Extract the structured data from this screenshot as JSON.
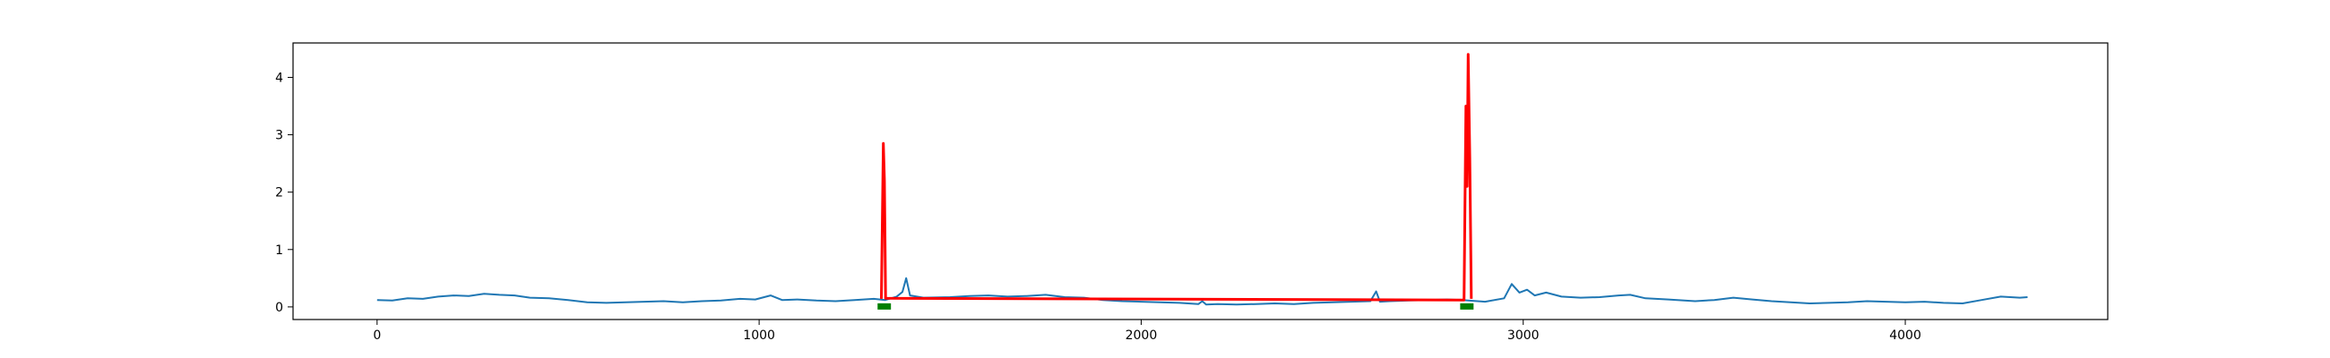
{
  "chart_data": {
    "type": "line",
    "title": "",
    "xlabel": "",
    "ylabel": "",
    "xlim": [
      -220,
      4530
    ],
    "ylim": [
      -0.22,
      4.6
    ],
    "x_ticks": [
      0,
      1000,
      2000,
      3000,
      4000
    ],
    "x_tick_labels": [
      "0",
      "1000",
      "2000",
      "3000",
      "4000"
    ],
    "y_ticks": [
      0,
      1,
      2,
      3,
      4
    ],
    "y_tick_labels": [
      "0",
      "1",
      "2",
      "3",
      "4"
    ],
    "grid": false,
    "legend": "none",
    "series": [
      {
        "color": "#1f77b4",
        "style": "line",
        "points": [
          [
            0,
            0.12
          ],
          [
            40,
            0.11
          ],
          [
            80,
            0.15
          ],
          [
            120,
            0.14
          ],
          [
            160,
            0.18
          ],
          [
            200,
            0.2
          ],
          [
            240,
            0.19
          ],
          [
            280,
            0.23
          ],
          [
            320,
            0.21
          ],
          [
            360,
            0.2
          ],
          [
            400,
            0.16
          ],
          [
            450,
            0.15
          ],
          [
            500,
            0.12
          ],
          [
            550,
            0.08
          ],
          [
            600,
            0.07
          ],
          [
            650,
            0.08
          ],
          [
            700,
            0.09
          ],
          [
            750,
            0.1
          ],
          [
            800,
            0.08
          ],
          [
            850,
            0.1
          ],
          [
            900,
            0.11
          ],
          [
            950,
            0.14
          ],
          [
            990,
            0.13
          ],
          [
            1030,
            0.2
          ],
          [
            1060,
            0.12
          ],
          [
            1100,
            0.13
          ],
          [
            1150,
            0.11
          ],
          [
            1200,
            0.1
          ],
          [
            1250,
            0.12
          ],
          [
            1300,
            0.14
          ],
          [
            1330,
            0.12
          ],
          [
            1360,
            0.18
          ],
          [
            1375,
            0.26
          ],
          [
            1385,
            0.5
          ],
          [
            1395,
            0.2
          ],
          [
            1430,
            0.16
          ],
          [
            1500,
            0.17
          ],
          [
            1550,
            0.19
          ],
          [
            1600,
            0.2
          ],
          [
            1650,
            0.18
          ],
          [
            1700,
            0.19
          ],
          [
            1750,
            0.21
          ],
          [
            1800,
            0.17
          ],
          [
            1850,
            0.16
          ],
          [
            1900,
            0.12
          ],
          [
            1950,
            0.1
          ],
          [
            2000,
            0.09
          ],
          [
            2050,
            0.08
          ],
          [
            2100,
            0.07
          ],
          [
            2150,
            0.05
          ],
          [
            2160,
            0.1
          ],
          [
            2170,
            0.04
          ],
          [
            2200,
            0.05
          ],
          [
            2250,
            0.04
          ],
          [
            2300,
            0.05
          ],
          [
            2350,
            0.06
          ],
          [
            2400,
            0.05
          ],
          [
            2450,
            0.07
          ],
          [
            2500,
            0.08
          ],
          [
            2550,
            0.09
          ],
          [
            2600,
            0.1
          ],
          [
            2615,
            0.27
          ],
          [
            2625,
            0.09
          ],
          [
            2650,
            0.1
          ],
          [
            2700,
            0.11
          ],
          [
            2750,
            0.12
          ],
          [
            2800,
            0.13
          ],
          [
            2840,
            0.12
          ],
          [
            2880,
            0.1
          ],
          [
            2900,
            0.09
          ],
          [
            2950,
            0.15
          ],
          [
            2970,
            0.4
          ],
          [
            2990,
            0.25
          ],
          [
            3010,
            0.3
          ],
          [
            3030,
            0.2
          ],
          [
            3060,
            0.25
          ],
          [
            3100,
            0.18
          ],
          [
            3150,
            0.16
          ],
          [
            3200,
            0.17
          ],
          [
            3250,
            0.2
          ],
          [
            3280,
            0.21
          ],
          [
            3320,
            0.15
          ],
          [
            3380,
            0.13
          ],
          [
            3450,
            0.1
          ],
          [
            3500,
            0.12
          ],
          [
            3550,
            0.16
          ],
          [
            3600,
            0.13
          ],
          [
            3650,
            0.1
          ],
          [
            3700,
            0.08
          ],
          [
            3750,
            0.06
          ],
          [
            3800,
            0.07
          ],
          [
            3850,
            0.08
          ],
          [
            3900,
            0.1
          ],
          [
            3950,
            0.09
          ],
          [
            4000,
            0.08
          ],
          [
            4050,
            0.09
          ],
          [
            4100,
            0.07
          ],
          [
            4150,
            0.06
          ],
          [
            4200,
            0.12
          ],
          [
            4250,
            0.18
          ],
          [
            4300,
            0.16
          ],
          [
            4320,
            0.17
          ]
        ]
      },
      {
        "color": "#ff0000",
        "style": "spike",
        "points": [
          [
            1320,
            0.14
          ],
          [
            1325,
            2.85
          ],
          [
            1328,
            2.2
          ],
          [
            1331,
            0.15
          ],
          [
            2845,
            0.12
          ],
          [
            2850,
            3.5
          ],
          [
            2853,
            2.1
          ],
          [
            2856,
            4.4
          ],
          [
            2860,
            2.6
          ],
          [
            2864,
            0.14
          ]
        ]
      },
      {
        "color": "#008000",
        "style": "band",
        "points": [
          [
            1310,
            0
          ],
          [
            1345,
            0
          ],
          [
            2835,
            0
          ],
          [
            2870,
            0
          ]
        ]
      }
    ]
  }
}
